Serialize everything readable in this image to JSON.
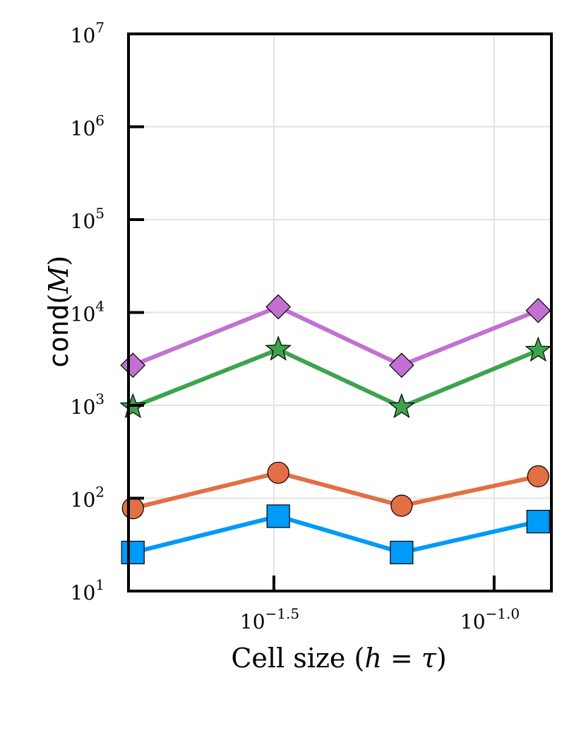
{
  "chart_data": {
    "type": "line",
    "xlabel": {
      "prefix": "Cell size (",
      "h": "h",
      "eq": " = ",
      "tau": "τ",
      "suffix": ")"
    },
    "ylabel": {
      "func": "cond",
      "open": "(",
      "var": "M",
      "close": ")"
    },
    "xscale": "log10",
    "yscale": "log10",
    "xlim_log10": [
      -1.83,
      -0.87
    ],
    "ylim_log10": [
      1,
      7
    ],
    "grid": true,
    "legend": "none",
    "x_ticks": [
      {
        "base": "10",
        "exp": "−1.5",
        "log": -1.5
      },
      {
        "base": "10",
        "exp": "−1.0",
        "log": -1.0
      }
    ],
    "y_ticks": [
      {
        "base": "10",
        "exp": "1",
        "log": 1
      },
      {
        "base": "10",
        "exp": "2",
        "log": 2
      },
      {
        "base": "10",
        "exp": "3",
        "log": 3
      },
      {
        "base": "10",
        "exp": "4",
        "log": 4
      },
      {
        "base": "10",
        "exp": "5",
        "log": 5
      },
      {
        "base": "10",
        "exp": "6",
        "log": 6
      },
      {
        "base": "10",
        "exp": "7",
        "log": 7
      }
    ],
    "x_log10": [
      -1.82,
      -1.49,
      -1.21,
      -0.9
    ],
    "series": [
      {
        "name": "series-1",
        "marker": "square",
        "color": "#009AF9",
        "values": [
          26,
          64,
          26,
          56
        ]
      },
      {
        "name": "series-2",
        "marker": "circle",
        "color": "#E26F46",
        "values": [
          78,
          188,
          83,
          172
        ]
      },
      {
        "name": "series-3",
        "marker": "star",
        "color": "#3DA44D",
        "values": [
          960,
          4000,
          960,
          3900
        ]
      },
      {
        "name": "series-4",
        "marker": "diamond",
        "color": "#C271D2",
        "values": [
          2700,
          11500,
          2700,
          10500
        ]
      }
    ]
  }
}
